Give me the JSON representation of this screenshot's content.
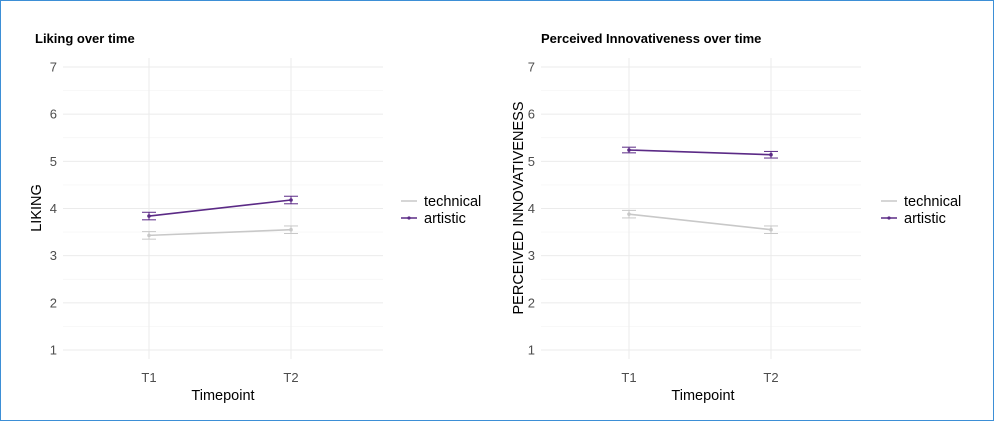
{
  "colors": {
    "technical": "#c8c8c8",
    "artistic": "#5b2a86"
  },
  "chart_data": [
    {
      "type": "line",
      "title": "Liking over time",
      "xlabel": "Timepoint",
      "ylabel": "LIKING",
      "categories": [
        "T1",
        "T2"
      ],
      "ylim": [
        1,
        7
      ],
      "yticks": [
        1,
        2,
        3,
        4,
        5,
        6,
        7
      ],
      "grid": true,
      "legend_position": "right",
      "series": [
        {
          "name": "technical",
          "color_key": "technical",
          "values": [
            3.43,
            3.55
          ],
          "lower": [
            3.35,
            3.47
          ],
          "upper": [
            3.51,
            3.63
          ]
        },
        {
          "name": "artistic",
          "color_key": "artistic",
          "values": [
            3.84,
            4.18
          ],
          "lower": [
            3.76,
            4.1
          ],
          "upper": [
            3.92,
            4.26
          ]
        }
      ]
    },
    {
      "type": "line",
      "title": "Perceived Innovativeness over time",
      "xlabel": "Timepoint",
      "ylabel": "PERCEIVED INNOVATIVENESS",
      "categories": [
        "T1",
        "T2"
      ],
      "ylim": [
        1,
        7
      ],
      "yticks": [
        1,
        2,
        3,
        4,
        5,
        6,
        7
      ],
      "grid": true,
      "legend_position": "right",
      "series": [
        {
          "name": "technical",
          "color_key": "technical",
          "values": [
            3.88,
            3.55
          ],
          "lower": [
            3.8,
            3.47
          ],
          "upper": [
            3.96,
            3.63
          ]
        },
        {
          "name": "artistic",
          "color_key": "artistic",
          "values": [
            5.24,
            5.14
          ],
          "lower": [
            5.18,
            5.07
          ],
          "upper": [
            5.3,
            5.21
          ]
        }
      ]
    }
  ]
}
